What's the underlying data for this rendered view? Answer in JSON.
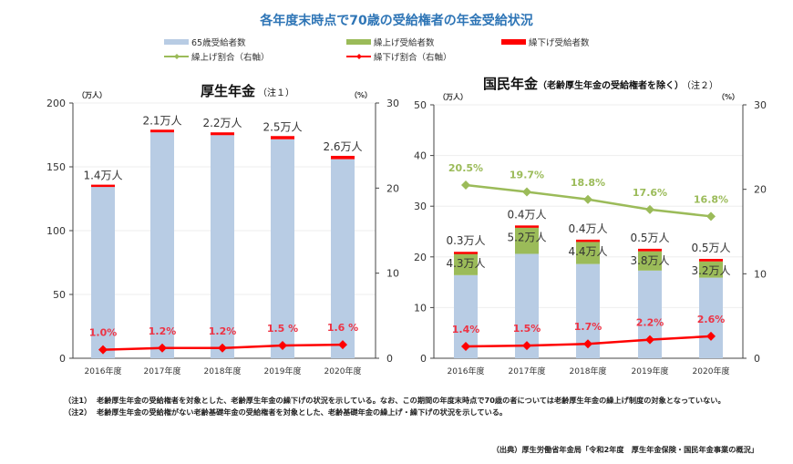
{
  "title": "各年度末時点で70歳の受給権者の年金受給状況",
  "legend": {
    "items": [
      {
        "label": "65歳受給者数",
        "type": "bar",
        "color": "#b8cce4"
      },
      {
        "label": "繰上げ受給者数",
        "type": "bar",
        "color": "#9bbb59"
      },
      {
        "label": "繰下げ受給者数",
        "type": "bar",
        "color": "#ff0000"
      },
      {
        "label": "繰上げ割合（右軸）",
        "type": "line",
        "color": "#9bbb59"
      },
      {
        "label": "繰下げ割合（右軸）",
        "type": "line",
        "color": "#ff0000"
      }
    ]
  },
  "chart_data": [
    {
      "type": "bar",
      "title": "厚生年金",
      "title_note": "（注１）",
      "y_unit_left": "（万人）",
      "y_unit_right": "（%）",
      "ylim": [
        0,
        200
      ],
      "yticks": [
        0,
        50,
        100,
        150,
        200
      ],
      "y2lim": [
        0,
        30
      ],
      "y2ticks": [
        0,
        10,
        20,
        30
      ],
      "categories": [
        "2016年度",
        "2017年度",
        "2018年度",
        "2019年度",
        "2020年度"
      ],
      "stacked_series": [
        {
          "name": "65歳受給者数",
          "color": "#b8cce4",
          "values": [
            134.6,
            177,
            174.8,
            171.6,
            156
          ]
        },
        {
          "name": "繰下げ受給者数",
          "color": "#ff0000",
          "values": [
            1.4,
            2.1,
            2.2,
            2.5,
            2.6
          ],
          "labels": [
            "1.4万人",
            "2.1万人",
            "2.2万人",
            "2.5万人",
            "2.6万人"
          ]
        }
      ],
      "line_series": [
        {
          "name": "繰下げ割合（右軸）",
          "color": "#ff0000",
          "values": [
            1.0,
            1.2,
            1.2,
            1.5,
            1.6
          ],
          "labels": [
            "1.0%",
            "1.2%",
            "1.2%",
            "1.5 %",
            "1.6 %"
          ]
        }
      ]
    },
    {
      "type": "bar",
      "title": "国民年金",
      "title_sub": "（老齢厚生年金の受給権者を除く）",
      "title_note": "（注２）",
      "y_unit_left": "（万人）",
      "y_unit_right": "（%）",
      "ylim": [
        0,
        50
      ],
      "yticks": [
        0,
        10,
        20,
        30,
        40,
        50
      ],
      "y2lim": [
        0,
        30
      ],
      "y2ticks": [
        0,
        10,
        20,
        30
      ],
      "categories": [
        "2016年度",
        "2017年度",
        "2018年度",
        "2019年度",
        "2020年度"
      ],
      "stacked_series": [
        {
          "name": "65歳受給者数",
          "color": "#b8cce4",
          "values": [
            16.4,
            20.6,
            18.6,
            17.3,
            15.9
          ]
        },
        {
          "name": "繰上げ受給者数",
          "color": "#9bbb59",
          "values": [
            4.3,
            5.2,
            4.4,
            3.8,
            3.2
          ],
          "labels": [
            "4.3万人",
            "5.2万人",
            "4.4万人",
            "3.8万人",
            "3.2万人"
          ]
        },
        {
          "name": "繰下げ受給者数",
          "color": "#ff0000",
          "values": [
            0.3,
            0.4,
            0.4,
            0.5,
            0.5
          ],
          "labels": [
            "0.3万人",
            "0.4万人",
            "0.4万人",
            "0.5万人",
            "0.5万人"
          ]
        }
      ],
      "line_series": [
        {
          "name": "繰上げ割合（右軸）",
          "color": "#9bbb59",
          "values": [
            20.5,
            19.7,
            18.8,
            17.6,
            16.8
          ],
          "labels": [
            "20.5%",
            "19.7%",
            "18.8%",
            "17.6%",
            "16.8%"
          ]
        },
        {
          "name": "繰下げ割合（右軸）",
          "color": "#ff0000",
          "values": [
            1.4,
            1.5,
            1.7,
            2.2,
            2.6
          ],
          "labels": [
            "1.4%",
            "1.5%",
            "1.7%",
            "2.2%",
            "2.6%"
          ]
        }
      ]
    }
  ],
  "notes": [
    {
      "label": "（注1）",
      "text": "老齢厚生年金の受給権者を対象とした、老齢厚生年金の繰下げの状況を示している。なお、この期間の年度末時点で70歳の者については老齢厚生年金の繰上げ制度の対象となっていない。"
    },
    {
      "label": "（注2）",
      "text": "老齢厚生年金の受給権がない老齢基礎年金の受給権者を対象とした、老齢基礎年金の繰上げ・繰下げの状況を示している。"
    }
  ],
  "source": "（出典）厚生労働省年金局「令和2年度　厚生年金保険・国民年金事業の概況」"
}
